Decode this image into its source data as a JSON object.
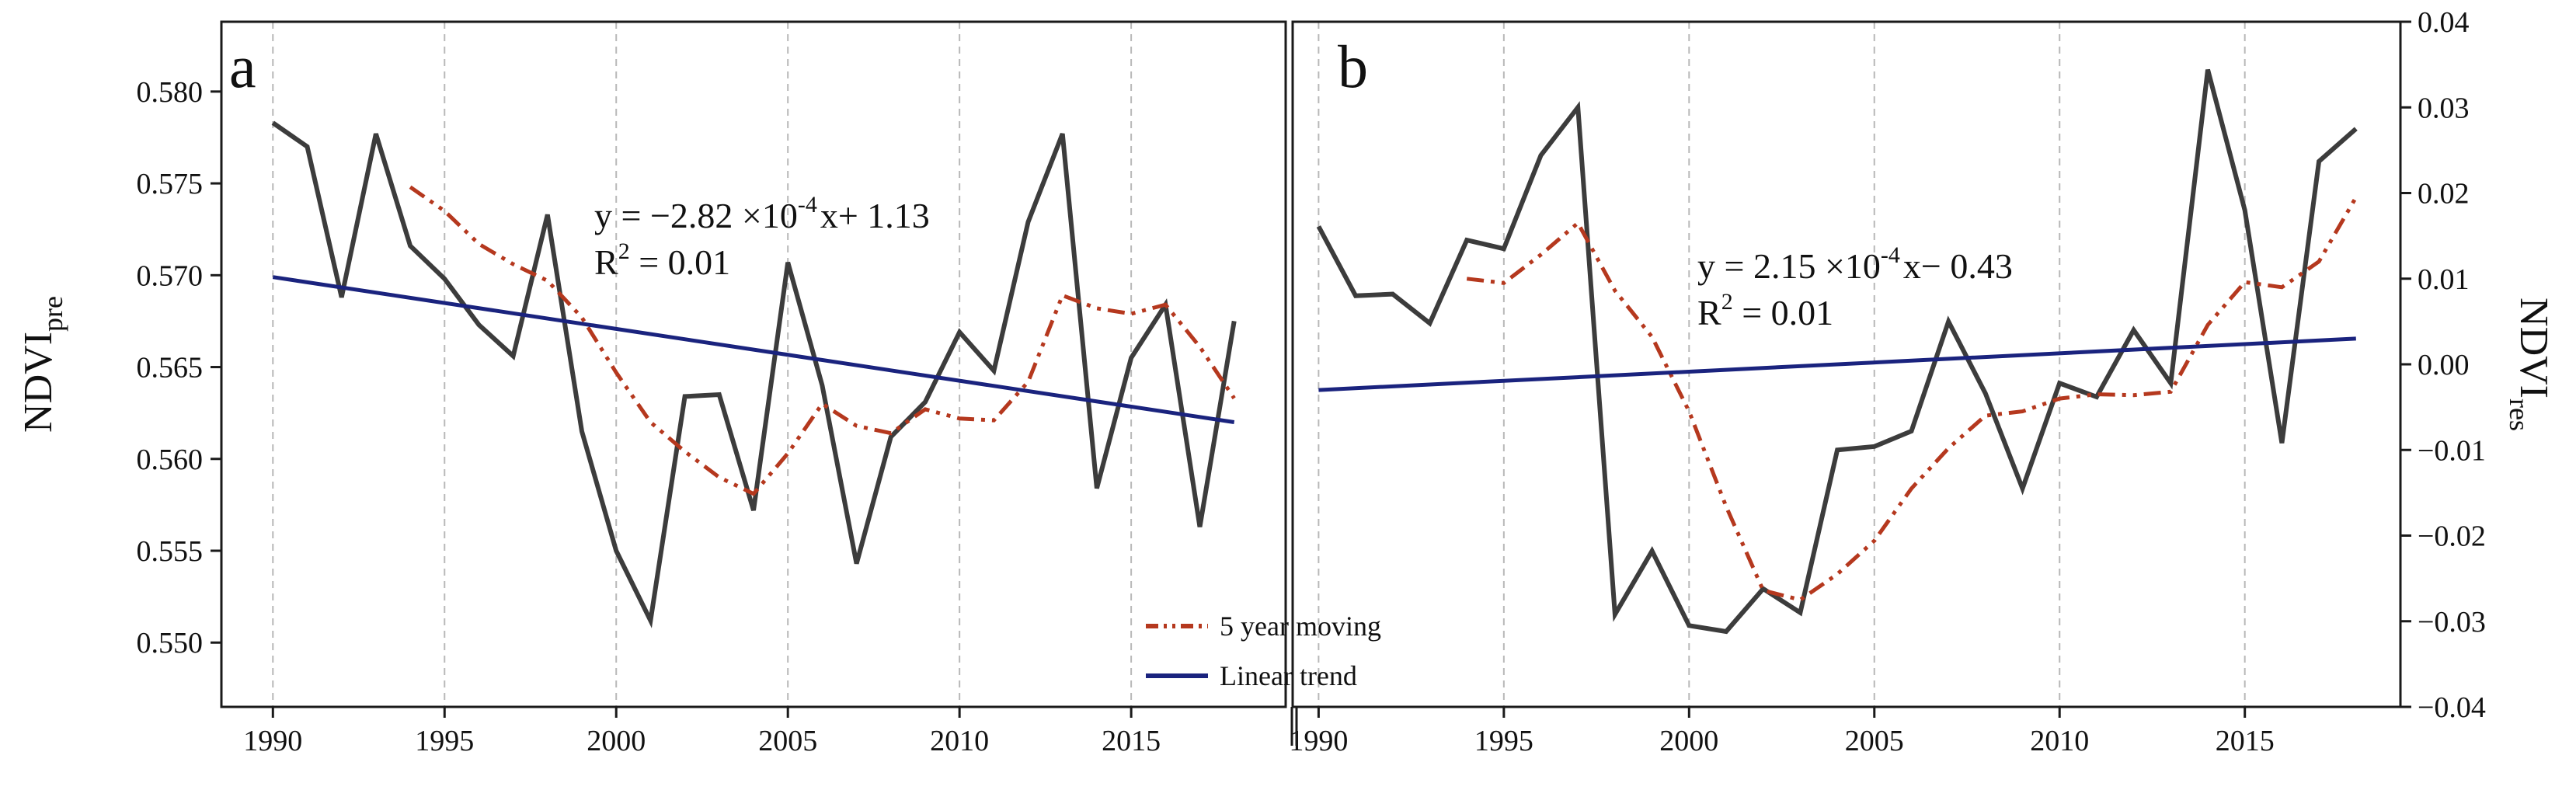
{
  "chart_data": [
    {
      "type": "line",
      "panel_label": "a",
      "xlabel": "",
      "ylabel": {
        "main": "NDVI",
        "sub": "pre"
      },
      "xlim": [
        1988.5,
        2019.5
      ],
      "ylim": [
        0.5465,
        0.5838
      ],
      "x_ticks": [
        1990,
        1995,
        2000,
        2005,
        2010,
        2015
      ],
      "y_ticks": [
        0.55,
        0.555,
        0.56,
        0.565,
        0.57,
        0.575,
        0.58
      ],
      "y_tick_labels": [
        "0.550",
        "0.555",
        "0.560",
        "0.565",
        "0.570",
        "0.575",
        "0.580"
      ],
      "y_axis_side": "left",
      "grid": "vertical-dashed",
      "equation": {
        "line1_prefix": "y = −2.82 ×10",
        "line1_exp": "-4",
        "line1_suffix": "x+ 1.13",
        "line2_prefix": "R",
        "line2_exp": "2",
        "line2_suffix": " = 0.01"
      },
      "series": [
        {
          "name": "NDVI_pre",
          "style": "solid",
          "color": "#3c3c3c",
          "x": [
            1990,
            1991,
            1992,
            1993,
            1994,
            1995,
            1996,
            1997,
            1998,
            1999,
            2000,
            2001,
            2002,
            2003,
            2004,
            2005,
            2006,
            2007,
            2008,
            2009,
            2010,
            2011,
            2012,
            2013,
            2014,
            2015,
            2016,
            2017,
            2018
          ],
          "y": [
            0.5783,
            0.577,
            0.5688,
            0.5777,
            0.5716,
            0.5698,
            0.5673,
            0.5656,
            0.5733,
            0.5615,
            0.555,
            0.5512,
            0.5634,
            0.5635,
            0.5572,
            0.5707,
            0.564,
            0.5543,
            0.5612,
            0.5631,
            0.5669,
            0.5648,
            0.5729,
            0.5777,
            0.5584,
            0.5655,
            0.5684,
            0.5563,
            0.5675
          ]
        },
        {
          "name": "5 year moving",
          "style": "dash-dot-dot",
          "color": "#b5381e",
          "x": [
            1994,
            1995,
            1996,
            1997,
            1998,
            1999,
            2000,
            2001,
            2002,
            2003,
            2004,
            2005,
            2006,
            2007,
            2008,
            2009,
            2010,
            2011,
            2012,
            2013,
            2014,
            2015,
            2016,
            2017,
            2018
          ],
          "y": [
            0.5748,
            0.5735,
            0.5717,
            0.5706,
            0.5697,
            0.5677,
            0.5647,
            0.562,
            0.5604,
            0.559,
            0.5581,
            0.5603,
            0.563,
            0.5618,
            0.5614,
            0.5627,
            0.5622,
            0.5621,
            0.5642,
            0.5689,
            0.5682,
            0.5679,
            0.5684,
            0.5661,
            0.5633
          ]
        },
        {
          "name": "Linear trend",
          "style": "solid",
          "color": "#1a237e",
          "x": [
            1990,
            2018
          ],
          "y": [
            0.5699,
            0.562
          ]
        }
      ]
    },
    {
      "type": "line",
      "panel_label": "b",
      "xlabel": "",
      "ylabel": {
        "main": "NDVI",
        "sub": "res"
      },
      "xlim": [
        1989.3,
        2019.2
      ],
      "ylim": [
        -0.04,
        0.04
      ],
      "x_ticks": [
        1990,
        1995,
        2000,
        2005,
        2010,
        2015
      ],
      "y_ticks": [
        -0.04,
        -0.03,
        -0.02,
        -0.01,
        0.0,
        0.01,
        0.02,
        0.03,
        0.04
      ],
      "y_tick_labels": [
        "−0.04",
        "−0.03",
        "−0.02",
        "−0.01",
        "0.00",
        "0.01",
        "0.02",
        "0.03",
        "0.04"
      ],
      "y_axis_side": "right",
      "grid": "vertical-dashed",
      "equation": {
        "line1_prefix": "y = 2.15 ×10",
        "line1_exp": "-4",
        "line1_suffix": "x− 0.43",
        "line2_prefix": "R",
        "line2_exp": "2",
        "line2_suffix": " = 0.01"
      },
      "series": [
        {
          "name": "NDVI_res",
          "style": "solid",
          "color": "#3c3c3c",
          "x": [
            1990,
            1991,
            1992,
            1993,
            1994,
            1995,
            1996,
            1997,
            1998,
            1999,
            2000,
            2001,
            2002,
            2003,
            2004,
            2005,
            2006,
            2007,
            2008,
            2009,
            2010,
            2011,
            2012,
            2013,
            2014,
            2015,
            2016,
            2017,
            2018
          ],
          "y": [
            0.0161,
            0.008,
            0.0082,
            0.0048,
            0.0145,
            0.0135,
            0.0244,
            0.03,
            -0.0292,
            -0.0218,
            -0.0305,
            -0.0312,
            -0.0262,
            -0.029,
            -0.01,
            -0.0096,
            -0.0078,
            0.005,
            -0.0034,
            -0.0145,
            -0.0022,
            -0.0038,
            0.004,
            -0.0022,
            0.0344,
            0.018,
            -0.0092,
            0.0237,
            0.0275
          ]
        },
        {
          "name": "5 year moving",
          "style": "dash-dot-dot",
          "color": "#b5381e",
          "x": [
            1994,
            1995,
            1996,
            1997,
            1998,
            1999,
            2000,
            2001,
            2002,
            2003,
            2004,
            2005,
            2006,
            2007,
            2008,
            2009,
            2010,
            2011,
            2012,
            2013,
            2014,
            2015,
            2016,
            2017,
            2018
          ],
          "y": [
            0.01,
            0.0095,
            0.0128,
            0.0165,
            0.0086,
            0.0032,
            -0.0055,
            -0.0166,
            -0.0264,
            -0.0275,
            -0.0245,
            -0.0206,
            -0.0145,
            -0.0098,
            -0.006,
            -0.0055,
            -0.004,
            -0.0035,
            -0.0036,
            -0.0032,
            0.0046,
            0.0096,
            0.009,
            0.012,
            0.0195
          ]
        },
        {
          "name": "Linear trend",
          "style": "solid",
          "color": "#1a237e",
          "x": [
            1990,
            2018
          ],
          "y": [
            -0.003,
            0.003
          ]
        }
      ]
    }
  ],
  "legend": {
    "items": [
      {
        "label": "5 year moving",
        "style": "dash-dot-dot",
        "color": "#b5381e"
      },
      {
        "label": "Linear trend",
        "style": "solid",
        "color": "#1a237e"
      }
    ]
  }
}
